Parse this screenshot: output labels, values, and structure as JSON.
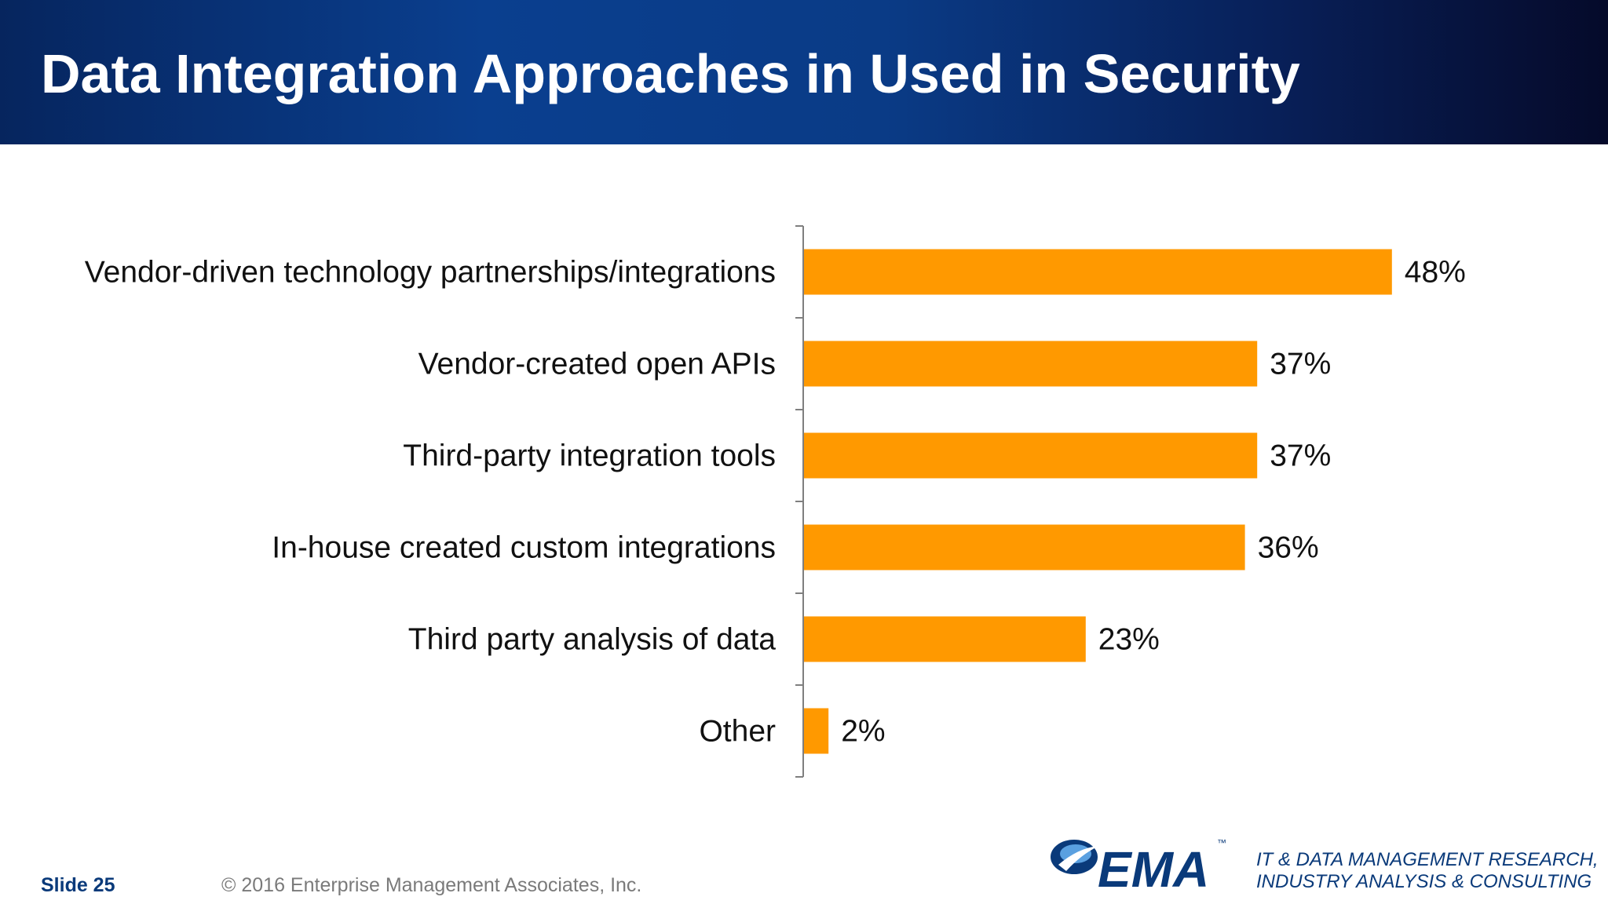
{
  "header": {
    "title": "Data Integration Approaches in Used in Security"
  },
  "colors": {
    "bar": "#FF9900",
    "header_dark": "#06255e",
    "header_mid": "#0a3f8f",
    "brand": "#0a3a7a"
  },
  "chart_data": {
    "type": "bar",
    "orientation": "horizontal",
    "categories": [
      "Vendor-driven technology partnerships/integrations",
      "Vendor-created open APIs",
      "Third-party integration tools",
      "In-house created custom integrations",
      "Third party analysis of data",
      "Other"
    ],
    "values": [
      48,
      37,
      37,
      36,
      23,
      2
    ],
    "value_labels": [
      "48%",
      "37%",
      "37%",
      "36%",
      "23%",
      "2%"
    ],
    "xlim": [
      0,
      50
    ],
    "grid": false,
    "legend": "none"
  },
  "footer": {
    "slide": "Slide 25",
    "copyright": "© 2016 Enterprise Management Associates, Inc.",
    "logo_text": "EMA",
    "logo_trademark": "™",
    "tagline_line1": "IT & DATA MANAGEMENT RESEARCH,",
    "tagline_line2": "INDUSTRY ANALYSIS & CONSULTING",
    "logo_icon": "ema-swoosh-icon"
  }
}
